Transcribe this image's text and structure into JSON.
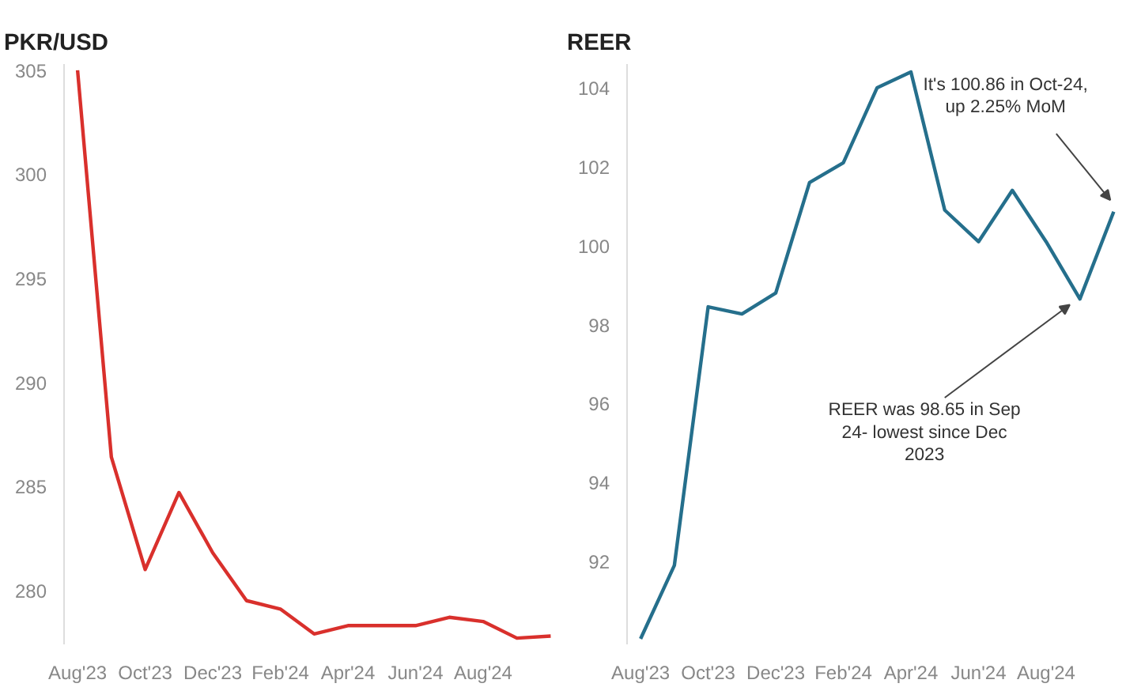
{
  "chart_data": [
    {
      "type": "line",
      "title": "PKR/USD",
      "categories": [
        "Aug'23",
        null,
        "Oct'23",
        null,
        "Dec'23",
        null,
        "Feb'24",
        null,
        "Apr'24",
        null,
        "Jun'24",
        null,
        "Aug'24",
        null,
        null
      ],
      "series": [
        {
          "color": "#d9302c",
          "values": [
            305.0,
            286.4,
            281.0,
            284.7,
            281.8,
            279.5,
            279.1,
            277.9,
            278.3,
            278.3,
            278.3,
            278.7,
            278.5,
            277.7,
            277.8
          ]
        }
      ],
      "ylim": [
        277.4,
        305.3
      ],
      "yticks": [
        280,
        285,
        290,
        295,
        300,
        305
      ],
      "grid": false,
      "marker": "none",
      "line_style": "solid"
    },
    {
      "type": "line",
      "title": "REER",
      "categories": [
        "Aug'23",
        null,
        "Oct'23",
        null,
        "Dec'23",
        null,
        "Feb'24",
        null,
        "Apr'24",
        null,
        "Jun'24",
        null,
        "Aug'24",
        null,
        null
      ],
      "series": [
        {
          "color": "#256f8c",
          "values": [
            90.04,
            91.9,
            98.45,
            98.27,
            98.8,
            101.6,
            102.1,
            104.0,
            104.4,
            100.9,
            100.1,
            101.4,
            100.1,
            98.65,
            100.86
          ]
        }
      ],
      "ylim": [
        89.9,
        104.6
      ],
      "yticks": [
        92,
        94,
        96,
        98,
        100,
        102,
        104
      ],
      "grid": false,
      "marker": "none",
      "line_style": "solid",
      "annotations": [
        "It's 100.86 in Oct-24, up 2.25% MoM",
        "REER was 98.65 in Sep 24- lowest since Dec 2023"
      ]
    }
  ]
}
